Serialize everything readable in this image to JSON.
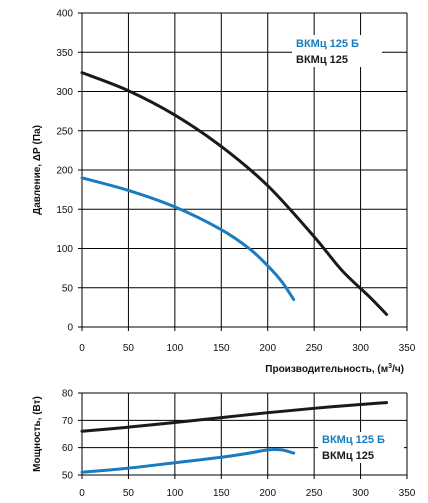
{
  "chart_data": [
    {
      "type": "line",
      "xlabel": "Производительность, (м³/ч)",
      "xlabel_main": "Производительность, (м",
      "xlabel_sup": "3",
      "xlabel_end": "/ч)",
      "ylabel": "Давление, ΔР (Па)",
      "xlim": [
        0,
        350
      ],
      "ylim": [
        0,
        400
      ],
      "x_ticks": [
        "0",
        "50",
        "100",
        "150",
        "200",
        "250",
        "300",
        "350"
      ],
      "y_ticks": [
        "0",
        "50",
        "100",
        "150",
        "200",
        "250",
        "300",
        "350",
        "400"
      ],
      "grid": true,
      "legend_position": "top-right",
      "series": [
        {
          "name": "ВКМц 125 Б",
          "color": "#1a7bc0",
          "x": [
            0,
            50,
            100,
            150,
            180,
            200,
            215,
            228
          ],
          "y": [
            190,
            174,
            153,
            124,
            100,
            78,
            58,
            35
          ]
        },
        {
          "name": "ВКМц 125",
          "color": "#1a1a1a",
          "x": [
            0,
            50,
            100,
            150,
            200,
            250,
            280,
            310,
            328
          ],
          "y": [
            324,
            301,
            270,
            230,
            180,
            115,
            72,
            38,
            16
          ]
        }
      ]
    },
    {
      "type": "line",
      "xlabel": "",
      "ylabel": "Мощность, (Вт)",
      "xlim": [
        0,
        350
      ],
      "ylim": [
        50,
        80
      ],
      "x_ticks": [
        "0",
        "50",
        "100",
        "150",
        "200",
        "250",
        "300",
        "350"
      ],
      "y_ticks": [
        "50",
        "60",
        "70",
        "80"
      ],
      "grid": true,
      "legend_position": "bottom-right",
      "series": [
        {
          "name": "ВКМц 125 Б",
          "color": "#1a7bc0",
          "x": [
            0,
            50,
            100,
            150,
            180,
            200,
            215,
            228
          ],
          "y": [
            51,
            52.5,
            54.5,
            56.5,
            58,
            59.2,
            59.2,
            58
          ]
        },
        {
          "name": "ВКМц 125",
          "color": "#1a1a1a",
          "x": [
            0,
            50,
            100,
            150,
            200,
            250,
            300,
            328
          ],
          "y": [
            66,
            67.5,
            69.2,
            71,
            72.8,
            74.4,
            75.8,
            76.5
          ]
        }
      ]
    }
  ]
}
